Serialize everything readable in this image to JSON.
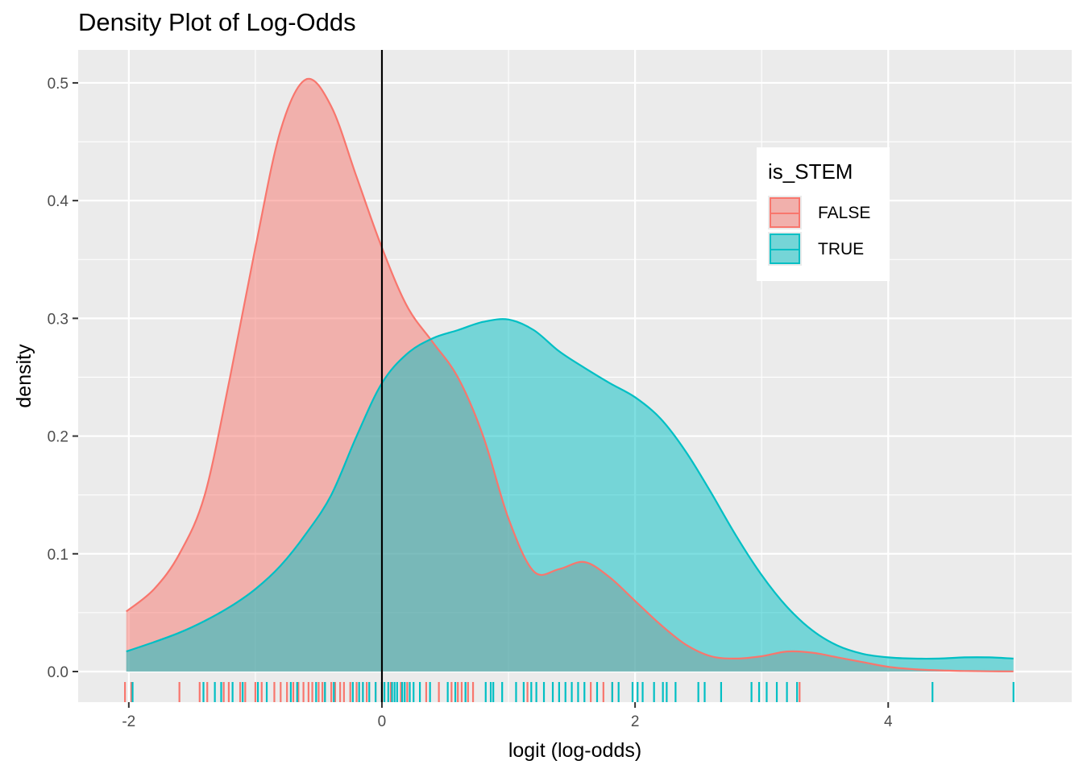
{
  "chart_data": {
    "type": "area",
    "title": "Density Plot of Log-Odds",
    "xlabel": "logit (log-odds)",
    "ylabel": "density",
    "xlim": [
      -2.4,
      5.45
    ],
    "ylim": [
      -0.026,
      0.528
    ],
    "x_ticks": [
      -2,
      0,
      2,
      4
    ],
    "x_tick_labels": [
      "-2",
      "0",
      "2",
      "4"
    ],
    "y_ticks": [
      0.0,
      0.1,
      0.2,
      0.3,
      0.4,
      0.5
    ],
    "y_tick_labels": [
      "0.0",
      "0.1",
      "0.2",
      "0.3",
      "0.4",
      "0.5"
    ],
    "grid": true,
    "vline_x": 0,
    "legend": {
      "title": "is_STEM",
      "position": "top-right",
      "entries": [
        "FALSE",
        "TRUE"
      ]
    },
    "series": [
      {
        "name": "FALSE",
        "color": "#F8766D",
        "fill": "#F8766D",
        "fill_opacity": 0.5,
        "x": [
          -2.02,
          -1.8,
          -1.6,
          -1.4,
          -1.2,
          -1.0,
          -0.8,
          -0.6,
          -0.4,
          -0.2,
          0.0,
          0.2,
          0.4,
          0.6,
          0.8,
          1.0,
          1.2,
          1.4,
          1.6,
          1.8,
          2.0,
          2.2,
          2.4,
          2.6,
          2.8,
          3.0,
          3.2,
          3.4,
          3.6,
          3.8,
          4.0,
          4.2,
          4.4,
          4.6,
          4.8,
          4.99
        ],
        "y": [
          0.051,
          0.07,
          0.1,
          0.15,
          0.25,
          0.36,
          0.46,
          0.503,
          0.48,
          0.42,
          0.36,
          0.31,
          0.28,
          0.25,
          0.2,
          0.13,
          0.085,
          0.087,
          0.093,
          0.08,
          0.06,
          0.04,
          0.023,
          0.013,
          0.011,
          0.013,
          0.017,
          0.016,
          0.012,
          0.008,
          0.004,
          0.002,
          0.001,
          0.0005,
          0.0002,
          0.0001
        ],
        "rug": [
          -2.03,
          -1.98,
          -1.6,
          -1.44,
          -1.38,
          -1.25,
          -1.21,
          -1.12,
          -1.08,
          -1.0,
          -0.95,
          -0.85,
          -0.8,
          -0.75,
          -0.7,
          -0.66,
          -0.62,
          -0.58,
          -0.55,
          -0.5,
          -0.47,
          -0.45,
          -0.4,
          -0.37,
          -0.33,
          -0.3,
          -0.25,
          -0.2,
          -0.15,
          -0.12,
          -0.05,
          0.0,
          0.07,
          0.15,
          0.2,
          0.35,
          0.45,
          0.55,
          0.6,
          0.63,
          0.68,
          0.72,
          1.15,
          1.65,
          1.75,
          1.82,
          3.3
        ]
      },
      {
        "name": "TRUE",
        "color": "#00BFC4",
        "fill": "#00BFC4",
        "fill_opacity": 0.5,
        "x": [
          -2.02,
          -1.8,
          -1.6,
          -1.4,
          -1.2,
          -1.0,
          -0.8,
          -0.6,
          -0.4,
          -0.2,
          0.0,
          0.2,
          0.4,
          0.6,
          0.8,
          1.0,
          1.2,
          1.4,
          1.6,
          1.8,
          2.0,
          2.2,
          2.4,
          2.6,
          2.8,
          3.0,
          3.2,
          3.4,
          3.6,
          3.8,
          4.0,
          4.2,
          4.4,
          4.6,
          4.8,
          4.99
        ],
        "y": [
          0.017,
          0.025,
          0.033,
          0.043,
          0.055,
          0.07,
          0.09,
          0.117,
          0.15,
          0.2,
          0.245,
          0.27,
          0.283,
          0.29,
          0.297,
          0.299,
          0.29,
          0.272,
          0.258,
          0.245,
          0.233,
          0.215,
          0.187,
          0.152,
          0.115,
          0.082,
          0.055,
          0.035,
          0.022,
          0.015,
          0.012,
          0.011,
          0.011,
          0.012,
          0.012,
          0.011
        ],
        "rug": [
          -1.97,
          -1.41,
          -1.32,
          -1.27,
          -1.18,
          -1.1,
          -0.98,
          -0.91,
          -0.72,
          -0.67,
          -0.52,
          -0.45,
          -0.38,
          -0.23,
          -0.18,
          -0.15,
          -0.1,
          -0.05,
          0.0,
          0.02,
          0.05,
          0.08,
          0.1,
          0.12,
          0.16,
          0.18,
          0.22,
          0.25,
          0.3,
          0.38,
          0.52,
          0.58,
          0.66,
          0.82,
          0.86,
          0.88,
          0.95,
          1.06,
          1.12,
          1.18,
          1.22,
          1.28,
          1.35,
          1.4,
          1.45,
          1.5,
          1.55,
          1.6,
          1.7,
          1.82,
          1.87,
          1.98,
          2.02,
          2.06,
          2.15,
          2.22,
          2.25,
          2.32,
          2.5,
          2.55,
          2.68,
          2.92,
          2.98,
          3.04,
          3.12,
          3.2,
          3.28,
          4.35,
          4.99
        ]
      }
    ]
  }
}
